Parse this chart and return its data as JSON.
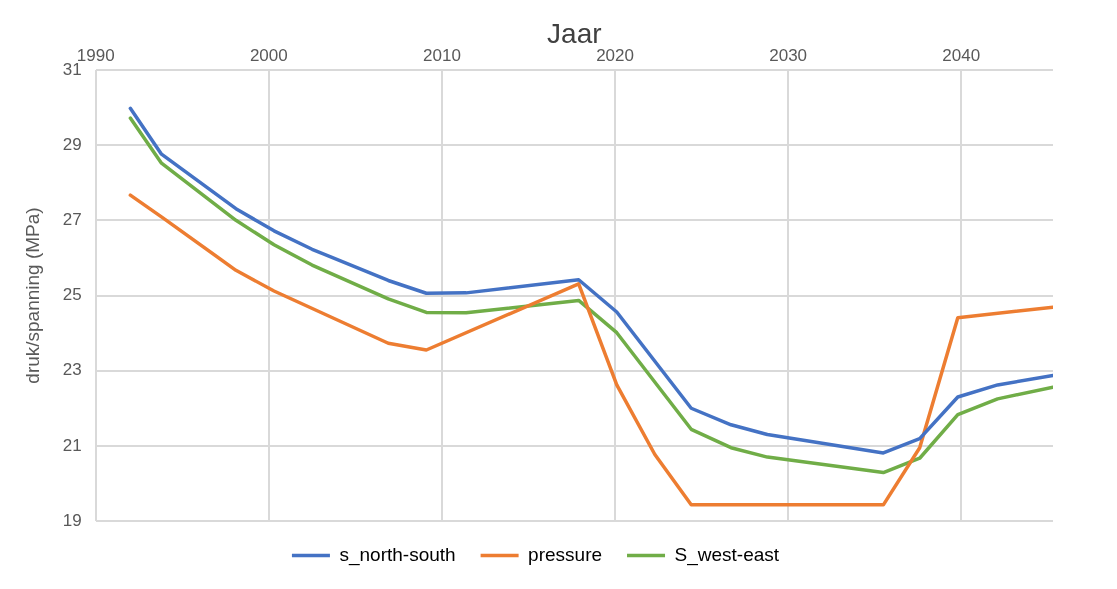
{
  "chart_data": {
    "type": "line",
    "xlabel": "Jaar",
    "ylabel": "druk/spanning (MPa)",
    "xlim": [
      1990,
      2045.3
    ],
    "xticks": [
      1990,
      2000,
      2010,
      2020,
      2030,
      2040
    ],
    "ylim": [
      19,
      31
    ],
    "yticks": [
      19,
      21,
      23,
      25,
      27,
      29,
      31
    ],
    "grid": true,
    "legend": "bottom",
    "marker": "none",
    "line_style": "solid",
    "series": [
      {
        "name": "s_north-south",
        "color": "#4472c4",
        "x": [
          1992.0,
          1993.8,
          1998.1,
          2000.3,
          2002.5,
          2006.9,
          2009.1,
          2011.4,
          2017.9,
          2020.1,
          2024.4,
          2026.7,
          2028.8,
          2035.5,
          2037.6,
          2039.8,
          2042.1,
          2045.3
        ],
        "values": [
          29.98,
          28.76,
          27.31,
          26.72,
          26.23,
          25.4,
          25.06,
          25.07,
          25.42,
          24.56,
          22.0,
          21.56,
          21.3,
          20.81,
          21.19,
          22.3,
          22.62,
          22.87
        ]
      },
      {
        "name": "pressure",
        "color": "#ed7d31",
        "x": [
          1992.0,
          1993.9,
          1998.1,
          2000.3,
          2006.9,
          2009.1,
          2017.9,
          2020.1,
          2022.3,
          2024.4,
          2035.5,
          2037.6,
          2039.8,
          2045.3
        ],
        "values": [
          27.67,
          27.06,
          25.67,
          25.12,
          23.73,
          23.55,
          25.31,
          22.62,
          20.77,
          19.43,
          19.43,
          20.95,
          24.41,
          24.69
        ]
      },
      {
        "name": "S_west-east",
        "color": "#70ad47",
        "x": [
          1992.0,
          1993.8,
          1998.1,
          2000.3,
          2002.5,
          2006.9,
          2009.1,
          2011.4,
          2017.9,
          2020.1,
          2024.4,
          2026.7,
          2028.8,
          2035.5,
          2037.6,
          2039.8,
          2042.1,
          2045.3
        ],
        "values": [
          29.72,
          28.52,
          27.0,
          26.35,
          25.81,
          24.91,
          24.55,
          24.54,
          24.87,
          24.01,
          21.44,
          20.95,
          20.7,
          20.29,
          20.67,
          21.83,
          22.25,
          22.56
        ]
      }
    ]
  }
}
